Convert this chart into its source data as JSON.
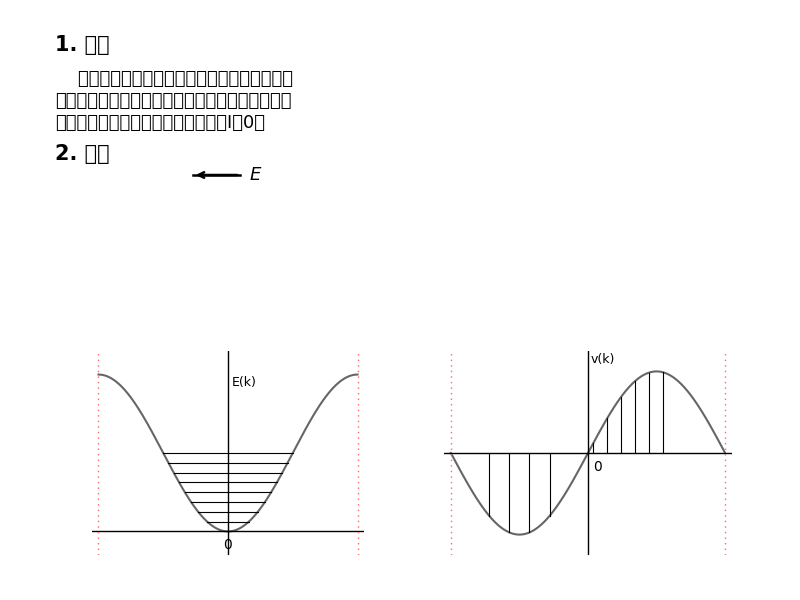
{
  "title1": "1. 满带",
  "title2": "2. 导带",
  "para1_line1": "    在有外加电场时，由于满带中所有能态均已被",
  "para1_line2": "电子填满，电子在满带中的对称分布不会因外场的",
  "para1_line3": "存在而改变，所以不产生宏观电流，I＝0。",
  "arrow_label": "E",
  "ek_label": "E(k)",
  "vk_label": "v(k)",
  "zero_label1": "0",
  "zero_label2": "0",
  "bg_color": "#ffffff",
  "text_color": "#000000",
  "curve_color": "#666666",
  "hline_color": "#000000",
  "vline_color": "#000000",
  "dashed_color": "#ff6666",
  "figsize": [
    8.0,
    6.0
  ]
}
